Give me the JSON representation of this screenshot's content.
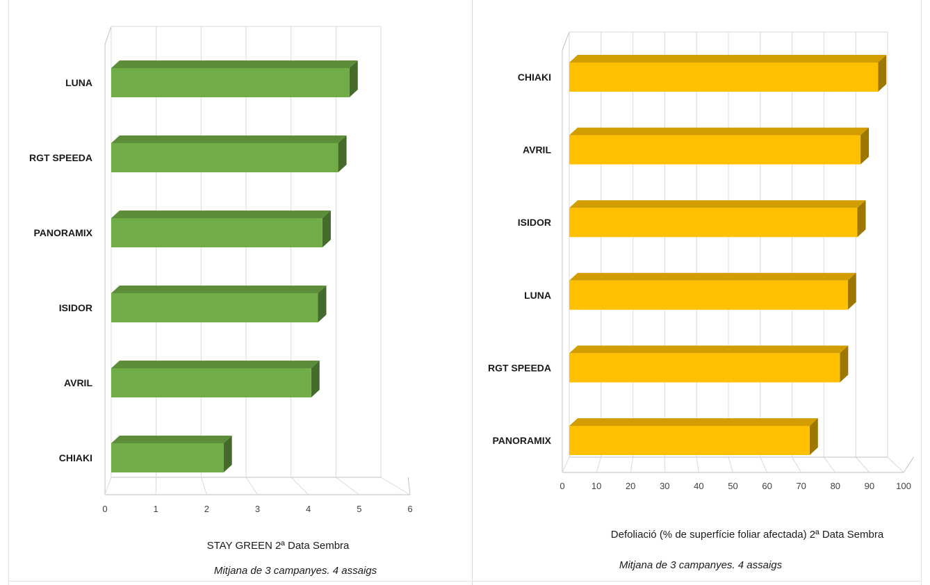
{
  "chart_data": [
    {
      "type": "bar",
      "orientation": "horizontal",
      "title": "",
      "xlabel": "STAY GREEN 2ª Data Sembra",
      "note": "Mitjana de 3 campanyes. 4 assaigs",
      "categories": [
        "LUNA",
        "RGT SPEEDA",
        "PANORAMIX",
        "ISIDOR",
        "AVRIL",
        "CHIAKI"
      ],
      "values": [
        5.3,
        5.05,
        4.7,
        4.6,
        4.45,
        2.5
      ],
      "xlim": [
        0,
        6
      ],
      "ticks": [
        "0",
        "1",
        "2",
        "3",
        "4",
        "5",
        "6"
      ],
      "bar_color": "#70ad47",
      "grid": true,
      "legend": "none"
    },
    {
      "type": "bar",
      "orientation": "horizontal",
      "title": "",
      "xlabel": "Defoliació (% de superfície foliar afectada) 2ª Data Sembra",
      "note": "Mitjana de 3 campanyes. 4 assaigs",
      "categories": [
        "CHIAKI",
        "AVRIL",
        "ISIDOR",
        "LUNA",
        "RGT SPEEDA",
        "PANORAMIX"
      ],
      "values": [
        97,
        91.5,
        90.5,
        87.5,
        85,
        75.5
      ],
      "xlim": [
        0,
        100
      ],
      "ticks": [
        "0",
        "10",
        "20",
        "30",
        "40",
        "50",
        "60",
        "70",
        "80",
        "90",
        "100"
      ],
      "bar_color": "#ffc000",
      "grid": true,
      "legend": "none"
    }
  ]
}
